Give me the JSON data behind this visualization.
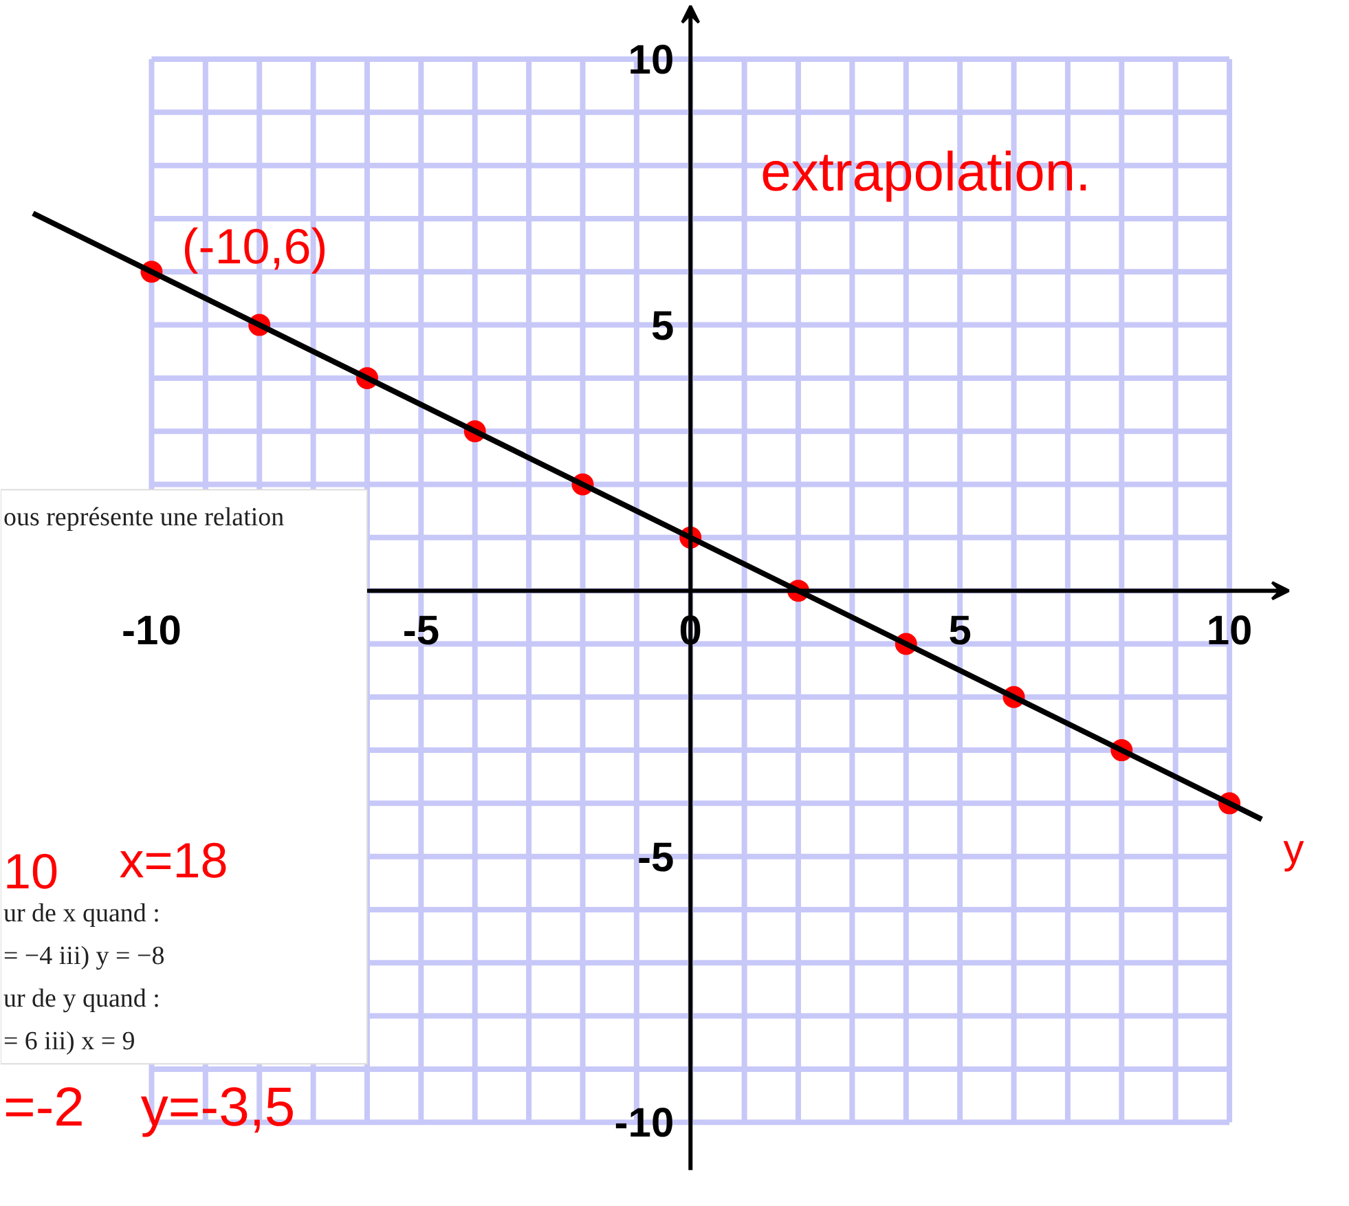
{
  "chart_data": {
    "type": "scatter",
    "marker": "circle",
    "grid": true,
    "xlim": [
      -12.8,
      11.9
    ],
    "ylim": [
      -11.2,
      11.1
    ],
    "xticks": [
      {
        "value": -10,
        "label": "-10"
      },
      {
        "value": -9,
        "label": null
      },
      {
        "value": -8,
        "label": null
      },
      {
        "value": -7,
        "label": null
      },
      {
        "value": -6,
        "label": null
      },
      {
        "value": -5,
        "label": "-5"
      },
      {
        "value": -4,
        "label": null
      },
      {
        "value": -3,
        "label": null
      },
      {
        "value": -2,
        "label": null
      },
      {
        "value": -1,
        "label": null
      },
      {
        "value": 0,
        "label": "0"
      },
      {
        "value": 1,
        "label": null
      },
      {
        "value": 2,
        "label": null
      },
      {
        "value": 3,
        "label": null
      },
      {
        "value": 4,
        "label": null
      },
      {
        "value": 5,
        "label": "5"
      },
      {
        "value": 6,
        "label": null
      },
      {
        "value": 7,
        "label": null
      },
      {
        "value": 8,
        "label": null
      },
      {
        "value": 9,
        "label": null
      },
      {
        "value": 10,
        "label": "10"
      }
    ],
    "yticks": [
      {
        "value": -10,
        "label": "-10"
      },
      {
        "value": -9,
        "label": null
      },
      {
        "value": -8,
        "label": null
      },
      {
        "value": -7,
        "label": null
      },
      {
        "value": -6,
        "label": null
      },
      {
        "value": -5,
        "label": "-5"
      },
      {
        "value": -4,
        "label": null
      },
      {
        "value": -3,
        "label": null
      },
      {
        "value": -2,
        "label": null
      },
      {
        "value": -1,
        "label": null
      },
      {
        "value": 0,
        "label": null
      },
      {
        "value": 1,
        "label": null
      },
      {
        "value": 2,
        "label": null
      },
      {
        "value": 3,
        "label": null
      },
      {
        "value": 4,
        "label": null
      },
      {
        "value": 5,
        "label": "5"
      },
      {
        "value": 6,
        "label": null
      },
      {
        "value": 7,
        "label": null
      },
      {
        "value": 8,
        "label": null
      },
      {
        "value": 9,
        "label": null
      },
      {
        "value": 10,
        "label": "10"
      }
    ],
    "series": [
      {
        "color": "#ff0000",
        "x": [
          -10,
          -8,
          -6,
          -4,
          -2,
          0,
          2,
          4,
          6,
          8,
          10
        ],
        "values": [
          6,
          5,
          4,
          3,
          2,
          1,
          0,
          -1,
          -2,
          -3,
          -4
        ]
      },
      {
        "type": "line",
        "marker": "none",
        "color": "#000000",
        "x": [
          -12.2,
          10.6
        ],
        "values": [
          7.1,
          -4.3
        ]
      }
    ],
    "annotations": [
      "extrapolation.",
      "y",
      "ous représente une relation",
      "10",
      "x=18",
      "ur de x quand :",
      "= −4    iii) y = −8",
      "ur de y quand :",
      "= 6    iii) x = 9",
      "=-2",
      "y=-3,5",
      {
        "text": "(-10,6)",
        "x": -10,
        "y": 6
      }
    ]
  }
}
